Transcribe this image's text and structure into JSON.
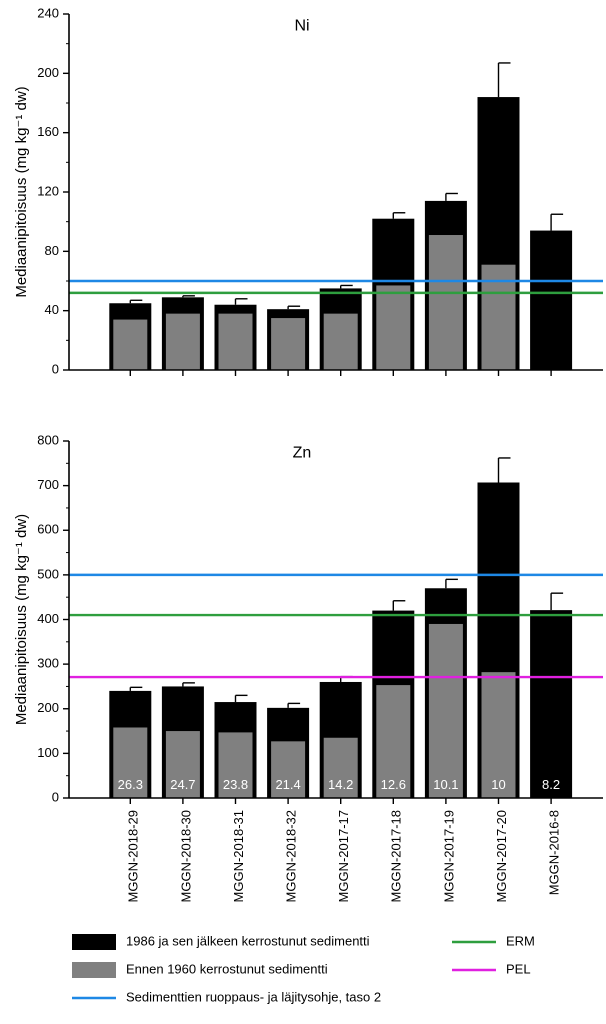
{
  "chart_data": [
    {
      "type": "bar",
      "title": "Ni",
      "ylabel": "Mediaanipitoisuus (mg kg⁻¹ dw)",
      "ylim": [
        0,
        240
      ],
      "yticks": [
        0,
        40,
        80,
        120,
        160,
        200,
        240
      ],
      "y_tick_labels": [
        "0",
        "40",
        "80",
        "120",
        "160",
        "200",
        "240"
      ],
      "categories": [
        "MGGN-2018-29",
        "MGGN-2018-30",
        "MGGN-2018-31",
        "MGGN-2018-32",
        "MGGN-2017-17",
        "MGGN-2017-18",
        "MGGN-2017-19",
        "MGGN-2017-20",
        "MGGN-2016-8"
      ],
      "series": [
        {
          "name": "1986 ja sen jälkeen kerrostunut sedimentti",
          "color": "#000000",
          "values": [
            45,
            49,
            44,
            41,
            55,
            102,
            114,
            184,
            94
          ],
          "error": [
            2,
            1,
            4,
            2,
            2,
            4,
            5,
            23,
            11
          ]
        },
        {
          "name": "Ennen 1960 kerrostunut sedimentti",
          "color": "#808080",
          "values": [
            34,
            38,
            38,
            35,
            38,
            57,
            91,
            71,
            null
          ]
        }
      ],
      "reference_lines": [
        {
          "name": "Sedimenttien ruoppaus- ja läjitysohje, taso 2",
          "value": 60,
          "color": "#1e88e5"
        },
        {
          "name": "ERM",
          "value": 52,
          "color": "#2e9e3e"
        }
      ],
      "data_labels": []
    },
    {
      "type": "bar",
      "title": "Zn",
      "ylabel": "Mediaanipitoisuus (mg kg⁻¹ dw)",
      "ylim": [
        0,
        800
      ],
      "yticks": [
        0,
        100,
        200,
        300,
        400,
        500,
        600,
        700,
        800
      ],
      "y_tick_labels": [
        "0",
        "100",
        "200",
        "300",
        "400",
        "500",
        "600",
        "700",
        "800"
      ],
      "categories": [
        "MGGN-2018-29",
        "MGGN-2018-30",
        "MGGN-2018-31",
        "MGGN-2018-32",
        "MGGN-2017-17",
        "MGGN-2017-18",
        "MGGN-2017-19",
        "MGGN-2017-20",
        "MGGN-2016-8"
      ],
      "series": [
        {
          "name": "1986 ja sen jälkeen kerrostunut sedimentti",
          "color": "#000000",
          "values": [
            240,
            250,
            215,
            202,
            260,
            420,
            470,
            707,
            421
          ],
          "error": [
            8,
            8,
            15,
            10,
            12,
            22,
            20,
            55,
            38
          ]
        },
        {
          "name": "Ennen 1960 kerrostunut sedimentti",
          "color": "#808080",
          "values": [
            158,
            150,
            147,
            127,
            135,
            253,
            390,
            282,
            null
          ]
        }
      ],
      "reference_lines": [
        {
          "name": "Sedimenttien ruoppaus- ja läjitysohje, taso 2",
          "value": 500,
          "color": "#1e88e5"
        },
        {
          "name": "ERM",
          "value": 410,
          "color": "#2e9e3e"
        },
        {
          "name": "PEL",
          "value": 271,
          "color": "#e020e0"
        }
      ],
      "data_labels": [
        "26.3",
        "24.7",
        "23.8",
        "21.4",
        "14.2",
        "12.6",
        "10.1",
        "10",
        "8.2"
      ]
    }
  ],
  "legend": {
    "items": [
      {
        "label": "1986 ja sen jälkeen kerrostunut sedimentti",
        "color": "#000000",
        "kind": "box"
      },
      {
        "label": "Ennen 1960 kerrostunut sedimentti",
        "color": "#808080",
        "kind": "box"
      },
      {
        "label": "Sedimenttien ruoppaus- ja läjitysohje, taso 2",
        "color": "#1e88e5",
        "kind": "line"
      },
      {
        "label": "ERM",
        "color": "#2e9e3e",
        "kind": "line"
      },
      {
        "label": "PEL",
        "color": "#e020e0",
        "kind": "line"
      }
    ]
  }
}
